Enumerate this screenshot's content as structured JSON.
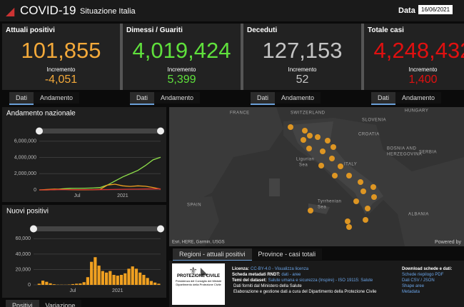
{
  "header": {
    "title": "COVID-19",
    "subtitle": "Situazione Italia",
    "date_label": "Data",
    "date": "16/06/2021"
  },
  "cards": [
    {
      "title": "Attuali positivi",
      "value": "101,855",
      "increment_label": "Incremento",
      "increment": "-4,051",
      "tabs": [
        "Dati",
        "Andamento"
      ],
      "color": "#f3a93a"
    },
    {
      "title": "Dimessi / Guariti",
      "value": "4,019,424",
      "increment_label": "Incremento",
      "increment": "5,399",
      "tabs": [
        "Dati",
        "Andamento"
      ],
      "color": "#5fe03c"
    },
    {
      "title": "Deceduti",
      "value": "127,153",
      "increment_label": "Incremento",
      "increment": "52",
      "tabs": [
        "Dati",
        "Andamento"
      ],
      "color": "#c4c4c4"
    },
    {
      "title": "Totale casi",
      "value": "4,248,432",
      "increment_label": "Incremento",
      "increment": "1,400",
      "tabs": [
        "Dati",
        "Andamento"
      ],
      "color": "#e01010"
    }
  ],
  "trend_chart": {
    "type": "line",
    "title": "Andamento nazionale",
    "categories": [
      null,
      null,
      null,
      null,
      null,
      "Jul",
      null,
      null,
      null,
      null,
      null,
      "2021",
      null,
      null,
      null,
      null,
      null
    ],
    "series": [
      {
        "color": "#8fe04a",
        "values": [
          0,
          0,
          20000,
          130000,
          190000,
          200000,
          210000,
          230000,
          290000,
          600000,
          1100000,
          1600000,
          2000000,
          2400000,
          3000000,
          3700000,
          4019424
        ]
      },
      {
        "color": "#f0a020",
        "values": [
          0,
          50000,
          100000,
          80000,
          40000,
          12000,
          14000,
          25000,
          60000,
          600000,
          700000,
          500000,
          430000,
          500000,
          450000,
          300000,
          101855
        ]
      },
      {
        "color": "#d83030",
        "values": [
          0,
          1000,
          27000,
          33000,
          34700,
          35000,
          35400,
          35900,
          38000,
          45000,
          65000,
          75000,
          88000,
          100000,
          115000,
          125000,
          127153
        ]
      }
    ],
    "ylim": [
      0,
      6500000
    ],
    "yticks": [
      {
        "value": 0,
        "label": "0"
      },
      {
        "value": 2000000,
        "label": "2,000,000"
      },
      {
        "value": 4000000,
        "label": "4,000,000"
      },
      {
        "value": 6000000,
        "label": "6,000,000"
      }
    ]
  },
  "new_cases_chart": {
    "type": "bar",
    "title": "Nuovi positivi",
    "color": "#f0a020",
    "categories": [
      null,
      null,
      null,
      null,
      null,
      null,
      null,
      null,
      null,
      null,
      "Jul",
      null,
      null,
      null,
      null,
      null,
      null,
      null,
      null,
      null,
      null,
      null,
      "2021",
      null,
      null,
      null,
      null,
      null,
      null,
      null,
      null,
      null,
      null,
      null
    ],
    "values": [
      0,
      1500,
      5500,
      4000,
      2000,
      800,
      300,
      250,
      200,
      400,
      1000,
      1500,
      1800,
      3500,
      10000,
      30000,
      36000,
      25000,
      18000,
      16000,
      18000,
      13000,
      12000,
      13000,
      15000,
      21000,
      24000,
      21000,
      16000,
      13000,
      9000,
      5000,
      3000,
      1500
    ],
    "ylim": [
      0,
      65000
    ],
    "yticks": [
      {
        "value": 0,
        "label": "0"
      },
      {
        "value": 20000,
        "label": "20,000"
      },
      {
        "value": 40000,
        "label": "40,000"
      },
      {
        "value": 60000,
        "label": "60,000"
      }
    ],
    "tabs": [
      "Positivi",
      "Variazione"
    ]
  },
  "map": {
    "labels": [
      "FRANCE",
      "SWITZERLAND",
      "SLOVENIA",
      "HUNGARY",
      "CROATIA",
      "BOSNIA AND",
      "HERZEGOVINA",
      "SERBIA",
      "ITALY",
      "Ligurian",
      "Sea",
      "SPAIN",
      "Tyrrhenian",
      "Sea",
      "ALBANIA"
    ],
    "attribution": "Esri, HERE, Garmin, USGS",
    "powered": "Powered by",
    "tabs": [
      "Regioni - attuali positivi",
      "Province - casi totali"
    ]
  },
  "footer": {
    "logo": "PROTEZIONE CIVILE",
    "logo_sub1": "Presidenza del Consiglio dei Ministri",
    "logo_sub2": "Dipartimento della Protezione Civile",
    "info": [
      [
        "Licenza:",
        "CC-BY-4.0 - Visualizza licenza"
      ],
      [
        "Scheda metadati RNDT:",
        "dati - aree"
      ],
      [
        "Temi del dataset:",
        "Salute umana e sicurezza (Inspire) - ISO 19115: Salute"
      ],
      [
        "",
        "Dati forniti dal Ministero della Salute"
      ],
      [
        "",
        "Elaborazione e gestione dati a cura del Dipartimento della Protezione Civile"
      ]
    ],
    "download_title": "Download schede e dati:",
    "downloads": [
      "Schede riepilogo PDF",
      "Dati CSV / JSON",
      "Shape aree",
      "Metadata"
    ]
  }
}
